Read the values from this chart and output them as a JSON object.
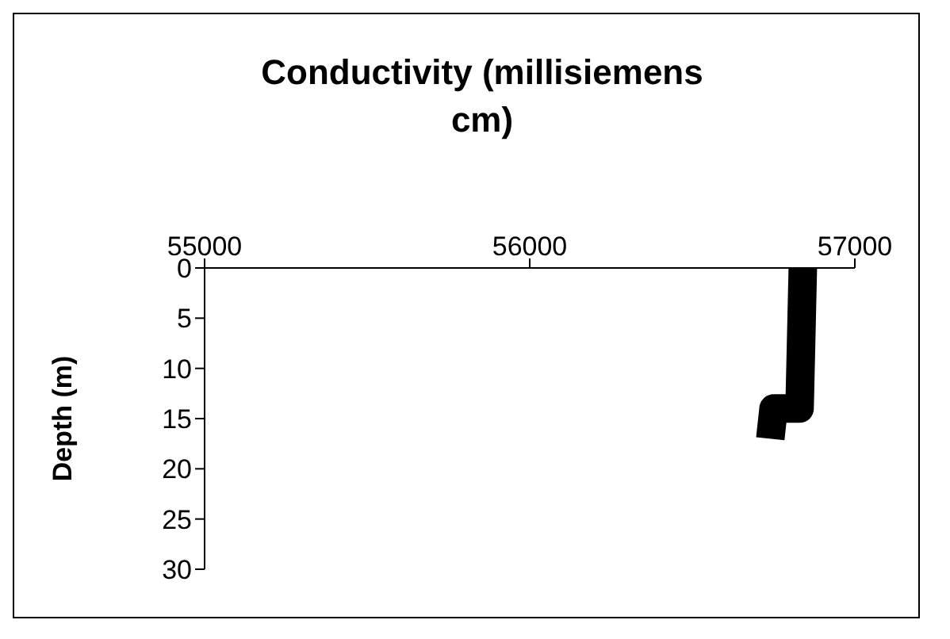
{
  "chart_data": {
    "type": "line",
    "title": "Conductivity (millisiemens cm)",
    "ylabel": "Depth (m)",
    "x": [
      56840,
      56830,
      56750,
      56740
    ],
    "values": [
      0,
      14,
      14,
      17
    ],
    "color": "#000000",
    "xlim": [
      55000,
      57000
    ],
    "xticks": [
      55000,
      56000,
      57000
    ],
    "ylim": [
      30,
      0
    ],
    "yticks": [
      0,
      5,
      10,
      15,
      20,
      25,
      30
    ],
    "grid": false,
    "legend": false,
    "marker": "none",
    "line_style": "solid"
  }
}
